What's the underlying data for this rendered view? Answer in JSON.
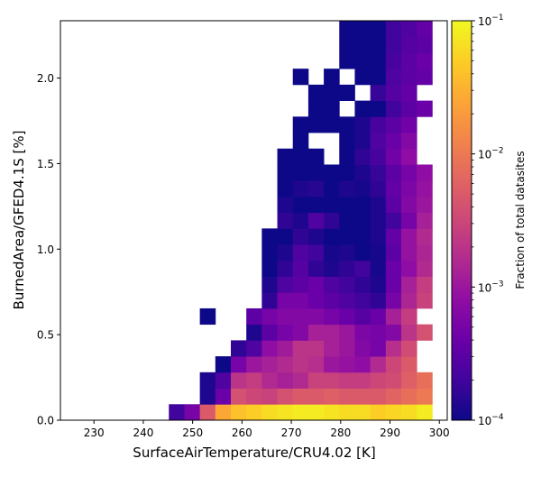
{
  "chart_data": {
    "type": "heatmap",
    "xlabel": "SurfaceAirTemperature/CRU4.02 [K]",
    "ylabel": "BurnedArea/GFED4.1S [%]",
    "colorbar_label": "Fraction of total datasites",
    "xlim": [
      223.2,
      301.6
    ],
    "ylim": [
      0,
      2.335
    ],
    "x_ticks": [
      230,
      240,
      250,
      260,
      270,
      280,
      290,
      300
    ],
    "x_tick_labels": [
      "230",
      "240",
      "250",
      "260",
      "270",
      "280",
      "290",
      "300"
    ],
    "y_ticks": [
      0,
      0.5,
      1,
      1.5,
      2
    ],
    "y_tick_labels": [
      "0.0",
      "0.5",
      "1.0",
      "1.5",
      "2.0"
    ],
    "color_scale": "log",
    "colormap": "plasma",
    "colorbar_range": [
      0.0001,
      0.1
    ],
    "colorbar_tick_labels": [
      {
        "base": "10",
        "exp": "−4",
        "value": 0.0001
      },
      {
        "base": "10",
        "exp": "−3",
        "value": 0.001
      },
      {
        "base": "10",
        "exp": "−2",
        "value": 0.01
      },
      {
        "base": "10",
        "exp": "−1",
        "value": 0.1
      }
    ],
    "bin_x_start": 223.2,
    "bin_x_width": 3.14,
    "bin_y_width": 0.0934,
    "bins_note": "rows listed from y=0 upward; each row: [first x-bin index, log10 fraction per bin (null = empty)]",
    "rows": [
      [
        7,
        [
          -3.7,
          -3.3,
          -2.3,
          -1.6,
          -1.4,
          -1.3,
          -1.2,
          -1.15,
          -1.1,
          -1.1,
          -1.15,
          -1.2,
          -1.2,
          -1.3,
          -1.25,
          -1.2,
          -1.1
        ]
      ],
      [
        9,
        [
          -3.9,
          -3.4,
          -2.4,
          -2.5,
          -2.55,
          -2.4,
          -2.3,
          -2.3,
          -2.25,
          -2.3,
          -2.3,
          -2.3,
          -2.2,
          -2.1,
          -2.0
        ]
      ],
      [
        9,
        [
          -3.9,
          -3.6,
          -2.7,
          -2.6,
          -2.8,
          -2.9,
          -2.8,
          -2.55,
          -2.55,
          -2.6,
          -2.6,
          -2.5,
          -2.45,
          -2.25,
          -2.1
        ]
      ],
      [
        10,
        [
          -4.0,
          -3.3,
          -3.0,
          -2.9,
          -2.8,
          -2.7,
          -2.75,
          -3.0,
          -3.05,
          -3.1,
          -2.8,
          -2.5,
          -2.3
        ]
      ],
      [
        11,
        [
          -3.8,
          -3.6,
          -3.1,
          -2.95,
          -2.7,
          -2.7,
          -2.9,
          -3.0,
          -3.2,
          -3.3,
          -2.75,
          -2.45
        ]
      ],
      [
        12,
        [
          -3.9,
          -3.5,
          -3.3,
          -3.2,
          -2.9,
          -2.9,
          -3.0,
          -3.25,
          -3.3,
          -3.2,
          -2.7,
          -2.4
        ]
      ],
      [
        9,
        [
          -4.0,
          null,
          null,
          -3.5,
          -3.3,
          -3.2,
          -3.2,
          -3.2,
          -3.3,
          -3.4,
          -3.55,
          -3.4,
          -2.9,
          -2.6
        ]
      ],
      [
        13,
        [
          -3.8,
          -3.3,
          -3.3,
          -3.4,
          -3.5,
          -3.6,
          -3.7,
          -3.8,
          -3.3,
          -2.85,
          -2.55
        ]
      ],
      [
        13,
        [
          -3.9,
          -3.6,
          -3.5,
          -3.4,
          -3.6,
          -3.7,
          -3.8,
          -3.9,
          -3.4,
          -2.9,
          -2.6
        ]
      ],
      [
        13,
        [
          -4.0,
          -3.8,
          -3.55,
          -3.8,
          -3.9,
          -3.8,
          -3.7,
          -3.95,
          -3.4,
          -3.1,
          -2.8
        ]
      ],
      [
        13,
        [
          -4.0,
          -3.9,
          -3.6,
          -3.7,
          -3.95,
          -3.9,
          -4.0,
          -3.95,
          -3.5,
          -3.05,
          -2.85
        ]
      ],
      [
        13,
        [
          -4.0,
          -4.0,
          -3.8,
          -3.9,
          -4.0,
          -4.0,
          -4.0,
          -3.9,
          -3.45,
          -3.05,
          -2.8
        ]
      ],
      [
        14,
        [
          -3.8,
          -3.9,
          -3.6,
          -3.8,
          -4.0,
          -4.0,
          -3.9,
          -3.7,
          -3.3,
          -2.9
        ]
      ],
      [
        14,
        [
          -3.9,
          -4.0,
          -4.0,
          -4.0,
          -4.0,
          -4.0,
          -3.9,
          -3.5,
          -3.2,
          -3.0
        ]
      ],
      [
        14,
        [
          -4.0,
          -3.9,
          -3.85,
          -4.0,
          -3.9,
          -3.95,
          -3.8,
          -3.45,
          -3.25,
          -3.05
        ]
      ],
      [
        14,
        [
          -4.0,
          -4.0,
          -4.0,
          -4.0,
          -4.0,
          -3.9,
          -3.75,
          -3.5,
          -3.3,
          -3.1
        ]
      ],
      [
        14,
        [
          -4.0,
          -4.0,
          -4.0,
          null,
          -4.0,
          -3.8,
          -3.65,
          -3.35,
          -3.1
        ]
      ],
      [
        15,
        [
          -4.0,
          null,
          null,
          -4.0,
          -3.9,
          -3.6,
          -3.4,
          -3.2
        ]
      ],
      [
        15,
        [
          -4.0,
          -4.0,
          -4.0,
          -4.0,
          -3.9,
          -3.65,
          -3.5,
          -3.35
        ]
      ],
      [
        16,
        [
          -4.0,
          -4.0,
          null,
          -4.0,
          -4.0,
          -3.7,
          -3.5,
          -3.4
        ]
      ],
      [
        16,
        [
          -4.0,
          -4.0,
          -4.0,
          null,
          -3.75,
          -3.55,
          -3.45
        ]
      ],
      [
        15,
        [
          -4.0,
          null,
          -4.0,
          null,
          -4.0,
          -4.0,
          -3.6,
          -3.5,
          -3.45
        ]
      ],
      [
        18,
        [
          -4.0,
          -4.0,
          -4.0,
          -3.65,
          -3.5,
          -3.4
        ]
      ],
      [
        18,
        [
          -4.0,
          -4.0,
          -4.0,
          -3.7,
          -3.55,
          -3.5
        ]
      ],
      [
        18,
        [
          -4.0,
          -4.0,
          -4.0,
          -3.7,
          -3.6,
          -3.45
        ]
      ]
    ]
  }
}
